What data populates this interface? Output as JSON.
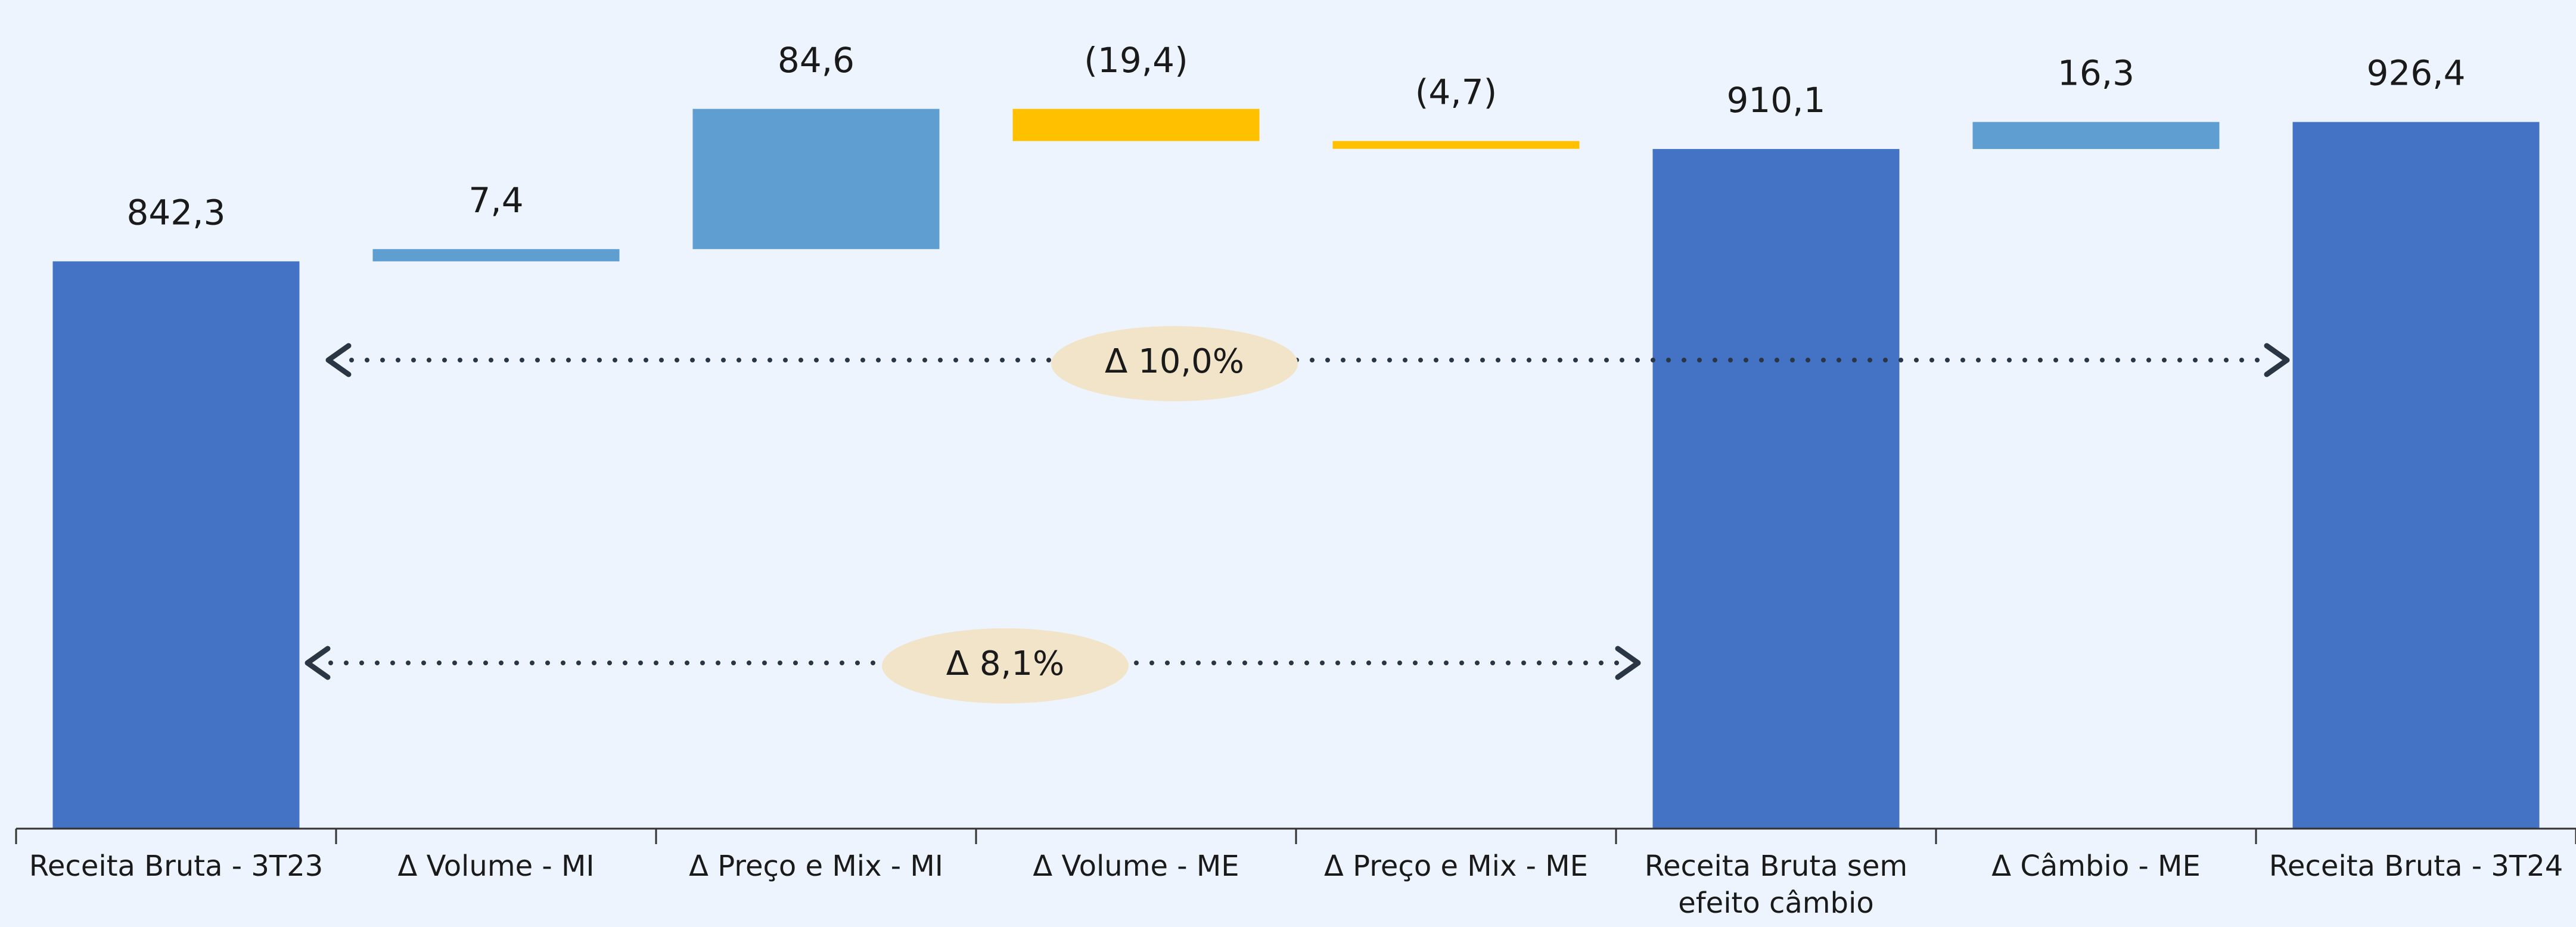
{
  "chart_data": {
    "type": "waterfall",
    "categories": [
      "Receita Bruta - 3T23",
      "Δ Volume - MI",
      "Δ Preço e Mix - MI",
      "Δ Volume - ME",
      "Δ Preço e Mix - ME",
      "Receita Bruta sem efeito câmbio",
      "Δ Câmbio - ME",
      "Receita Bruta - 3T24"
    ],
    "values": [
      842.3,
      7.4,
      84.6,
      -19.4,
      -4.7,
      910.1,
      16.3,
      926.4
    ],
    "value_labels": [
      "842,3",
      "7,4",
      "84,6",
      "(19,4)",
      "(4,7)",
      "910,1",
      "16,3",
      "926,4"
    ],
    "measure": [
      "absolute",
      "relative",
      "relative",
      "relative",
      "relative",
      "absolute",
      "relative",
      "absolute"
    ],
    "total_color": "#4472c4",
    "increase_color": "#5f9ed1",
    "decrease_color": "#ffc000",
    "ylim": [
      500,
      1000
    ],
    "annotations": [
      "Δ 10,0%",
      "Δ 8,1%"
    ]
  }
}
